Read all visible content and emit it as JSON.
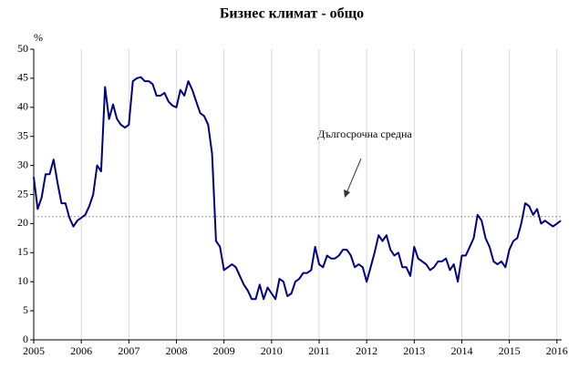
{
  "chart_data": {
    "type": "line",
    "title": "Бизнес климат - общо",
    "y_label": "%",
    "annotation": "Дългосрочна средна",
    "average": 21.2,
    "average_color": "#909090",
    "x": [
      2005,
      2005.083,
      2005.167,
      2005.25,
      2005.333,
      2005.417,
      2005.5,
      2005.583,
      2005.667,
      2005.75,
      2005.833,
      2005.917,
      2006,
      2006.083,
      2006.167,
      2006.25,
      2006.333,
      2006.417,
      2006.5,
      2006.583,
      2006.667,
      2006.75,
      2006.833,
      2006.917,
      2007,
      2007.083,
      2007.167,
      2007.25,
      2007.333,
      2007.417,
      2007.5,
      2007.583,
      2007.667,
      2007.75,
      2007.833,
      2007.917,
      2008,
      2008.083,
      2008.167,
      2008.25,
      2008.333,
      2008.417,
      2008.5,
      2008.583,
      2008.667,
      2008.75,
      2008.833,
      2008.917,
      2009,
      2009.083,
      2009.167,
      2009.25,
      2009.333,
      2009.417,
      2009.5,
      2009.583,
      2009.667,
      2009.75,
      2009.833,
      2009.917,
      2010,
      2010.083,
      2010.167,
      2010.25,
      2010.333,
      2010.417,
      2010.5,
      2010.583,
      2010.667,
      2010.75,
      2010.833,
      2010.917,
      2011,
      2011.083,
      2011.167,
      2011.25,
      2011.333,
      2011.417,
      2011.5,
      2011.583,
      2011.667,
      2011.75,
      2011.833,
      2011.917,
      2012,
      2012.083,
      2012.167,
      2012.25,
      2012.333,
      2012.417,
      2012.5,
      2012.583,
      2012.667,
      2012.75,
      2012.833,
      2012.917,
      2013,
      2013.083,
      2013.167,
      2013.25,
      2013.333,
      2013.417,
      2013.5,
      2013.583,
      2013.667,
      2013.75,
      2013.833,
      2013.917,
      2014,
      2014.083,
      2014.167,
      2014.25,
      2014.333,
      2014.417,
      2014.5,
      2014.583,
      2014.667,
      2014.75,
      2014.833,
      2014.917,
      2015,
      2015.083,
      2015.167,
      2015.25,
      2015.333,
      2015.417,
      2015.5,
      2015.583,
      2015.667,
      2015.75,
      2015.833,
      2015.917,
      2016,
      2016.083
    ],
    "series": [
      {
        "name": "Бизнес климат - общо",
        "color": "#000080",
        "values": [
          28,
          22.5,
          24.5,
          28.5,
          28.5,
          31,
          27,
          23.5,
          23.5,
          21,
          19.5,
          20.5,
          21,
          21.5,
          23,
          25,
          30,
          29,
          43.5,
          38,
          40.5,
          38,
          37,
          36.5,
          37,
          44.5,
          45,
          45.2,
          44.5,
          44.5,
          44,
          42,
          42,
          42.5,
          41,
          40.3,
          40,
          43,
          42,
          44.5,
          43,
          41,
          39,
          38.5,
          37,
          32,
          17,
          16,
          12,
          12.5,
          13,
          12.5,
          11,
          9.5,
          8.5,
          7,
          7,
          9.5,
          7,
          9,
          8,
          7,
          10.5,
          10,
          7.5,
          8,
          10,
          10.5,
          11.5,
          11.5,
          12,
          16,
          13,
          12.5,
          14.5,
          14,
          14,
          14.5,
          15.5,
          15.5,
          14.5,
          12.5,
          13,
          12.5,
          10,
          12.5,
          15,
          18,
          17,
          18,
          15.5,
          14.5,
          15,
          12.5,
          12.5,
          11,
          16,
          14,
          13.5,
          13,
          12,
          12.5,
          13.5,
          13.5,
          14,
          12,
          13,
          10,
          14.5,
          14.5,
          16,
          17.5,
          21.5,
          20.5,
          17.5,
          16,
          13.5,
          13,
          13.5,
          12.5,
          15.5,
          17,
          17.5,
          20,
          23.5,
          23,
          21.5,
          22.5,
          20,
          20.5,
          20,
          19.5,
          20,
          20.5
        ]
      }
    ],
    "xlim": [
      2005,
      2016.1
    ],
    "xticks": [
      2005,
      2006,
      2007,
      2008,
      2009,
      2010,
      2011,
      2012,
      2013,
      2014,
      2015,
      2016
    ],
    "ylim": [
      0,
      50
    ],
    "yticks": [
      0,
      5,
      10,
      15,
      20,
      25,
      30,
      35,
      40,
      45,
      50
    ],
    "grid": true
  }
}
